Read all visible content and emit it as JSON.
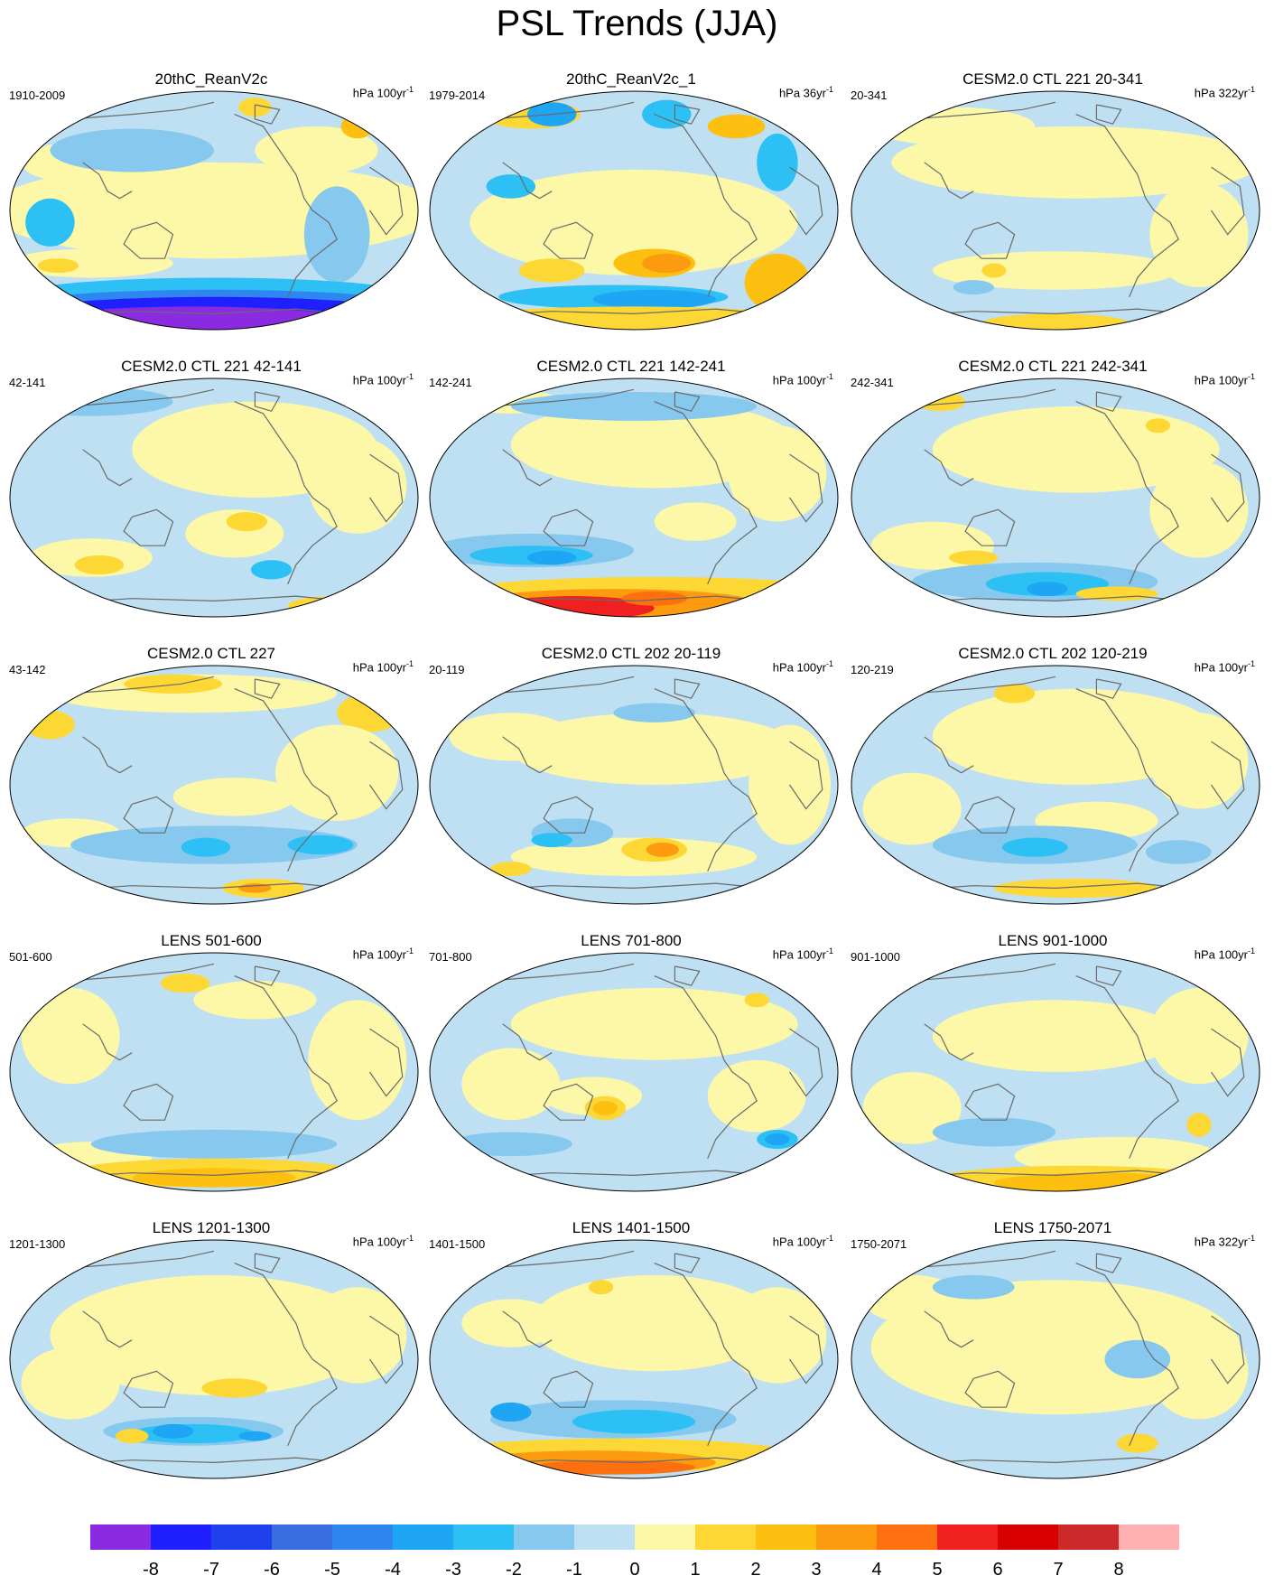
{
  "title": "PSL Trends (JJA)",
  "panels": [
    {
      "title": "20thC_ReanV2c",
      "period": "1910-2009",
      "units": "hPa 100yr",
      "exponent": "-1"
    },
    {
      "title": "20thC_ReanV2c_1",
      "period": "1979-2014",
      "units": "hPa 36yr",
      "exponent": "-1"
    },
    {
      "title": "CESM2.0 CTL 221 20-341",
      "period": "20-341",
      "units": "hPa 322yr",
      "exponent": "-1"
    },
    {
      "title": "CESM2.0 CTL 221 42-141",
      "period": "42-141",
      "units": "hPa 100yr",
      "exponent": "-1"
    },
    {
      "title": "CESM2.0 CTL 221 142-241",
      "period": "142-241",
      "units": "hPa 100yr",
      "exponent": "-1"
    },
    {
      "title": "CESM2.0 CTL 221 242-341",
      "period": "242-341",
      "units": "hPa 100yr",
      "exponent": "-1"
    },
    {
      "title": "CESM2.0 CTL 227",
      "period": "43-142",
      "units": "hPa 100yr",
      "exponent": "-1"
    },
    {
      "title": "CESM2.0 CTL 202 20-119",
      "period": "20-119",
      "units": "hPa 100yr",
      "exponent": "-1"
    },
    {
      "title": "CESM2.0 CTL 202 120-219",
      "period": "120-219",
      "units": "hPa 100yr",
      "exponent": "-1"
    },
    {
      "title": "LENS 501-600",
      "period": "501-600",
      "units": "hPa 100yr",
      "exponent": "-1"
    },
    {
      "title": "LENS 701-800",
      "period": "701-800",
      "units": "hPa 100yr",
      "exponent": "-1"
    },
    {
      "title": "LENS 901-1000",
      "period": "901-1000",
      "units": "hPa 100yr",
      "exponent": "-1"
    },
    {
      "title": "LENS 1201-1300",
      "period": "1201-1300",
      "units": "hPa 100yr",
      "exponent": "-1"
    },
    {
      "title": "LENS 1401-1500",
      "period": "1401-1500",
      "units": "hPa 100yr",
      "exponent": "-1"
    },
    {
      "title": "LENS 1750-2071",
      "period": "1750-2071",
      "units": "hPa 322yr",
      "exponent": "-1"
    }
  ],
  "colorbar": {
    "labels": [
      "-8",
      "-7",
      "-6",
      "-5",
      "-4",
      "-3",
      "-2",
      "-1",
      "0",
      "1",
      "2",
      "3",
      "4",
      "5",
      "6",
      "7",
      "8"
    ],
    "colors": [
      "#8a2be2",
      "#2020ff",
      "#2040ee",
      "#3a6ee0",
      "#2f86f0",
      "#1ea6f5",
      "#2cc0f5",
      "#87c8ee",
      "#bfe0f2",
      "#fdf8a8",
      "#fdd835",
      "#fdbf10",
      "#fd9b10",
      "#fd7010",
      "#f02020",
      "#d80000",
      "#cc2a2a",
      "#ffb0b0"
    ]
  },
  "palette": {
    "land_line": "#6a6a6a",
    "light_blue": "#bfe0f2",
    "light_yellow": "#fdf8a8"
  }
}
